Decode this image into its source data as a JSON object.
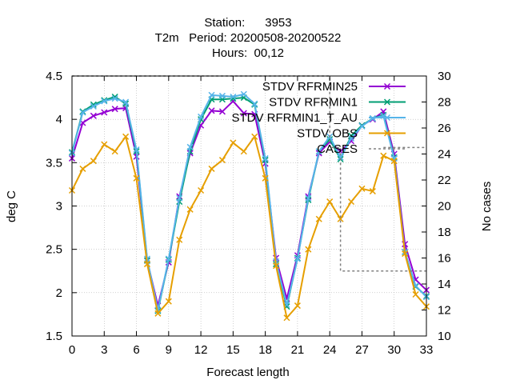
{
  "chart_data": {
    "type": "line",
    "title_lines": [
      "Station:      3953",
      "T2m   Period: 20200508-20200522",
      "Hours:  00,12"
    ],
    "xlabel": "Forecast length",
    "ylabel": "deg C",
    "y2label": "No cases",
    "xlim": [
      0,
      33
    ],
    "ylim": [
      1.5,
      4.5
    ],
    "y2lim": [
      10,
      30
    ],
    "xticks": [
      0,
      3,
      6,
      9,
      12,
      15,
      18,
      21,
      24,
      27,
      30,
      33
    ],
    "yticks": [
      1.5,
      2,
      2.5,
      3,
      3.5,
      4,
      4.5
    ],
    "y2ticks": [
      10,
      12,
      14,
      16,
      18,
      20,
      22,
      24,
      26,
      28,
      30
    ],
    "grid": true,
    "legend_position": "top-right",
    "x": [
      0,
      1,
      2,
      3,
      4,
      5,
      6,
      7,
      8,
      9,
      10,
      11,
      12,
      13,
      14,
      15,
      16,
      17,
      18,
      19,
      20,
      21,
      22,
      23,
      24,
      25,
      26,
      27,
      28,
      29,
      30,
      31,
      32,
      33
    ],
    "series": [
      {
        "name": "STDV RFRMIN25",
        "color": "#9400d3",
        "marker": "x",
        "axis": "y1",
        "values": [
          3.55,
          3.96,
          4.04,
          4.08,
          4.12,
          4.13,
          3.57,
          2.37,
          1.85,
          2.35,
          3.11,
          3.61,
          3.93,
          4.1,
          4.09,
          4.21,
          4.07,
          4.06,
          3.49,
          2.4,
          1.93,
          2.43,
          3.11,
          3.61,
          3.74,
          3.63,
          3.75,
          3.93,
          4.0,
          4.09,
          3.6,
          2.56,
          2.15,
          2.03
        ]
      },
      {
        "name": "STDV RFRMIN1",
        "color": "#009e73",
        "marker": "x",
        "axis": "y1",
        "values": [
          3.62,
          4.09,
          4.17,
          4.22,
          4.26,
          4.18,
          3.63,
          2.37,
          1.79,
          2.38,
          3.05,
          3.63,
          4.0,
          4.23,
          4.23,
          4.24,
          4.25,
          4.17,
          3.53,
          2.33,
          1.84,
          2.4,
          3.07,
          3.63,
          3.77,
          3.54,
          3.81,
          3.93,
          4.01,
          4.05,
          3.56,
          2.47,
          2.07,
          1.96
        ]
      },
      {
        "name": "STDV RFRMIN1_T_AU",
        "color": "#56b4e9",
        "marker": "x",
        "axis": "y1",
        "values": [
          3.61,
          4.08,
          4.15,
          4.21,
          4.24,
          4.2,
          3.65,
          2.39,
          1.8,
          2.39,
          3.09,
          3.68,
          4.03,
          4.28,
          4.27,
          4.26,
          4.29,
          4.18,
          3.55,
          2.36,
          1.86,
          2.39,
          3.09,
          3.63,
          3.8,
          3.56,
          3.78,
          3.92,
          4.01,
          4.04,
          3.55,
          2.47,
          2.08,
          1.95
        ]
      },
      {
        "name": "STDV OBS",
        "color": "#e69f00",
        "marker": "x",
        "axis": "y1",
        "values": [
          3.18,
          3.43,
          3.52,
          3.71,
          3.63,
          3.8,
          3.32,
          2.33,
          1.76,
          1.9,
          2.61,
          2.96,
          3.18,
          3.43,
          3.53,
          3.73,
          3.63,
          3.8,
          3.32,
          2.31,
          1.71,
          1.85,
          2.5,
          2.85,
          3.05,
          2.85,
          3.05,
          3.2,
          3.17,
          3.58,
          3.52,
          2.45,
          1.98,
          1.84
        ]
      },
      {
        "name": "CASES",
        "color": "#808080",
        "dashed": true,
        "axis": "y2",
        "x": [
          0,
          24,
          24,
          25,
          25,
          33
        ],
        "values": [
          30,
          30,
          24.5,
          24.5,
          15,
          15
        ]
      }
    ],
    "cases_legend_extension": {
      "x": [
        29,
        33
      ],
      "values": [
        24.5,
        24.5
      ]
    }
  }
}
